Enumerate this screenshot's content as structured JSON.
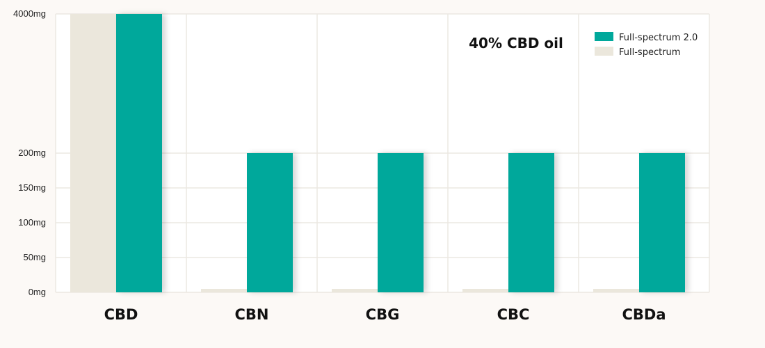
{
  "chart_data": {
    "type": "bar",
    "title": "40% CBD oil",
    "xlabel": "",
    "ylabel": "",
    "categories": [
      "CBD",
      "CBN",
      "CBG",
      "CBC",
      "CBDa"
    ],
    "y_ticks": [
      0,
      50,
      100,
      150,
      200,
      4000
    ],
    "y_tick_labels": [
      "0mg",
      "50mg",
      "100mg",
      "150mg",
      "200mg",
      "4000mg"
    ],
    "y_axis_break": {
      "from": 200,
      "to": 4000
    },
    "ylim": [
      0,
      4000
    ],
    "series": [
      {
        "name": "Full-spectrum",
        "values": [
          4000,
          5,
          5,
          5,
          5
        ],
        "color": "#ebe7dc"
      },
      {
        "name": "Full-spectrum 2.0",
        "values": [
          4000,
          200,
          200,
          200,
          200
        ],
        "color": "#00a89b"
      }
    ],
    "legend": {
      "position": "top-right",
      "order": [
        "Full-spectrum 2.0",
        "Full-spectrum"
      ]
    },
    "grid": true,
    "colors": {
      "background": "#fcf9f6",
      "plot_background": "#ffffff",
      "grid": "#ece8e2"
    }
  }
}
